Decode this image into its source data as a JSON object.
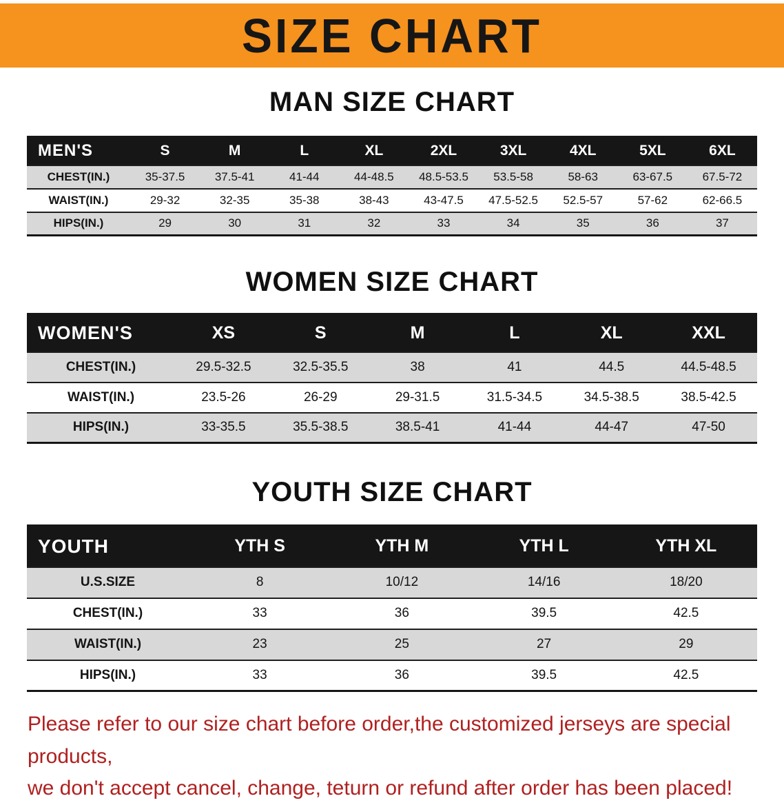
{
  "banner": {
    "title": "SIZE CHART",
    "bg_color": "#F6921E"
  },
  "man_section": {
    "heading": "MAN SIZE CHART",
    "table": {
      "corner": "MEN'S",
      "columns": [
        "S",
        "M",
        "L",
        "XL",
        "2XL",
        "3XL",
        "4XL",
        "5XL",
        "6XL"
      ],
      "rows": [
        {
          "label": "CHEST(IN.)",
          "values": [
            "35-37.5",
            "37.5-41",
            "41-44",
            "44-48.5",
            "48.5-53.5",
            "53.5-58",
            "58-63",
            "63-67.5",
            "67.5-72"
          ]
        },
        {
          "label": "WAIST(IN.)",
          "values": [
            "29-32",
            "32-35",
            "35-38",
            "38-43",
            "43-47.5",
            "47.5-52.5",
            "52.5-57",
            "57-62",
            "62-66.5"
          ]
        },
        {
          "label": "HIPS(IN.)",
          "values": [
            "29",
            "30",
            "31",
            "32",
            "33",
            "34",
            "35",
            "36",
            "37"
          ]
        }
      ]
    }
  },
  "women_section": {
    "heading": "WOMEN SIZE CHART",
    "table": {
      "corner": "WOMEN'S",
      "columns": [
        "XS",
        "S",
        "M",
        "L",
        "XL",
        "XXL"
      ],
      "rows": [
        {
          "label": "CHEST(IN.)",
          "values": [
            "29.5-32.5",
            "32.5-35.5",
            "38",
            "41",
            "44.5",
            "44.5-48.5"
          ]
        },
        {
          "label": "WAIST(IN.)",
          "values": [
            "23.5-26",
            "26-29",
            "29-31.5",
            "31.5-34.5",
            "34.5-38.5",
            "38.5-42.5"
          ]
        },
        {
          "label": "HIPS(IN.)",
          "values": [
            "33-35.5",
            "35.5-38.5",
            "38.5-41",
            "41-44",
            "44-47",
            "47-50"
          ]
        }
      ]
    }
  },
  "youth_section": {
    "heading": "YOUTH SIZE CHART",
    "table": {
      "corner": "YOUTH",
      "columns": [
        "YTH S",
        "YTH M",
        "YTH L",
        "YTH XL"
      ],
      "rows": [
        {
          "label": "U.S.SIZE",
          "values": [
            "8",
            "10/12",
            "14/16",
            "18/20"
          ]
        },
        {
          "label": "CHEST(IN.)",
          "values": [
            "33",
            "36",
            "39.5",
            "42.5"
          ]
        },
        {
          "label": "WAIST(IN.)",
          "values": [
            "23",
            "25",
            "27",
            "29"
          ]
        },
        {
          "label": "HIPS(IN.)",
          "values": [
            "33",
            "36",
            "39.5",
            "42.5"
          ]
        }
      ]
    }
  },
  "footer": {
    "line1": "Please refer to our size chart before order,the customized jerseys are special products,",
    "line2": "we don't accept cancel, change, teturn or refund after order has been placed!",
    "text_color": "#B02020"
  }
}
